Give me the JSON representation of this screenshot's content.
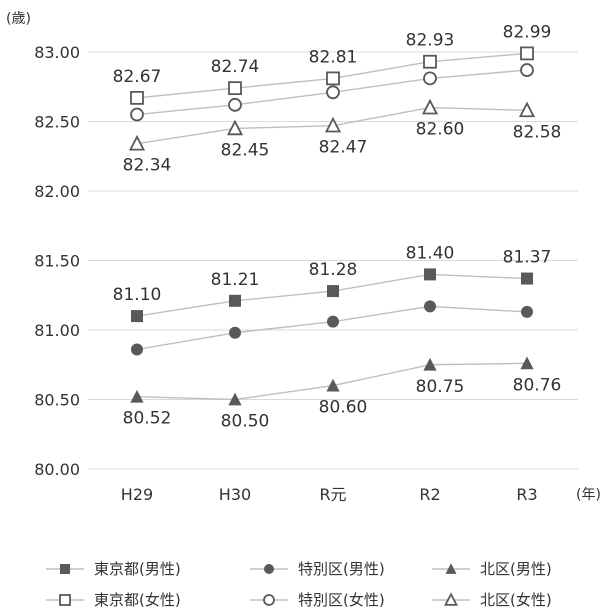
{
  "chart_data": {
    "type": "line",
    "ylabel": "(歳)",
    "xlabel": "(年)",
    "ylim": [
      80.0,
      83.0
    ],
    "yticks": [
      "83.00",
      "82.50",
      "82.00",
      "81.50",
      "81.00",
      "80.50",
      "80.00"
    ],
    "categories": [
      "H29",
      "H30",
      "R元",
      "R2",
      "R3"
    ],
    "grid": true,
    "legend_position": "bottom",
    "series": [
      {
        "name": "東京都(男性)",
        "marker": "filled-square",
        "values": [
          81.1,
          81.21,
          81.28,
          81.4,
          81.37
        ],
        "labels": [
          "81.10",
          "81.21",
          "81.28",
          "81.40",
          "81.37"
        ],
        "label_pos": "above"
      },
      {
        "name": "特別区(男性)",
        "marker": "filled-circle",
        "values": [
          80.86,
          80.98,
          81.06,
          81.17,
          81.13
        ],
        "labels": [],
        "label_pos": "none"
      },
      {
        "name": "北区(男性)",
        "marker": "filled-triangle",
        "values": [
          80.52,
          80.5,
          80.6,
          80.75,
          80.76
        ],
        "labels": [
          "80.52",
          "80.50",
          "80.60",
          "80.75",
          "80.76"
        ],
        "label_pos": "below"
      },
      {
        "name": "東京都(女性)",
        "marker": "open-square",
        "values": [
          82.67,
          82.74,
          82.81,
          82.93,
          82.99
        ],
        "labels": [
          "82.67",
          "82.74",
          "82.81",
          "82.93",
          "82.99"
        ],
        "label_pos": "above"
      },
      {
        "name": "特別区(女性)",
        "marker": "open-circle",
        "values": [
          82.55,
          82.62,
          82.71,
          82.81,
          82.87
        ],
        "labels": [],
        "label_pos": "none"
      },
      {
        "name": "北区(女性)",
        "marker": "open-triangle",
        "values": [
          82.34,
          82.45,
          82.47,
          82.6,
          82.58
        ],
        "labels": [
          "82.34",
          "82.45",
          "82.47",
          "82.60",
          "82.58"
        ],
        "label_pos": "below"
      }
    ]
  },
  "colors": {
    "marker": "#595959",
    "line": "#bfbfbf",
    "grid": "#d9d9d9",
    "text": "#333333"
  }
}
